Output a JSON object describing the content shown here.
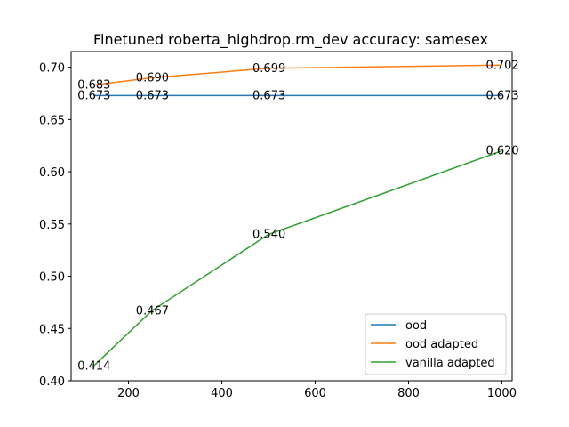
{
  "chart_data": {
    "type": "line",
    "title": "Finetuned roberta_highdrop.rm_dev accuracy: samesex",
    "xlabel": "",
    "ylabel": "",
    "xlim": [
      77,
      1022
    ],
    "ylim": [
      0.4,
      0.715
    ],
    "xticks": [
      200,
      400,
      600,
      800,
      1000
    ],
    "xtick_labels": [
      "200",
      "400",
      "600",
      "800",
      "1000"
    ],
    "yticks": [
      0.4,
      0.45,
      0.5,
      0.55,
      0.6,
      0.65,
      0.7
    ],
    "ytick_labels": [
      "0.40",
      "0.45",
      "0.50",
      "0.55",
      "0.60",
      "0.65",
      "0.70"
    ],
    "grid": false,
    "legend_position": "lower right",
    "series": [
      {
        "name": "ood",
        "color": "#1f77b4",
        "x": [
          125,
          250,
          500,
          1000
        ],
        "y": [
          0.673,
          0.673,
          0.673,
          0.673
        ],
        "labels": [
          "0.673",
          "0.673",
          "0.673",
          "0.673"
        ]
      },
      {
        "name": "ood adapted",
        "color": "#ff7f0e",
        "x": [
          125,
          250,
          500,
          1000
        ],
        "y": [
          0.683,
          0.69,
          0.699,
          0.702
        ],
        "labels": [
          "0.683",
          "0.690",
          "0.699",
          "0.702"
        ]
      },
      {
        "name": "vanilla adapted",
        "color": "#2ca02c",
        "x": [
          125,
          250,
          500,
          1000
        ],
        "y": [
          0.414,
          0.467,
          0.54,
          0.62
        ],
        "labels": [
          "0.414",
          "0.467",
          "0.540",
          "0.620"
        ]
      }
    ]
  }
}
